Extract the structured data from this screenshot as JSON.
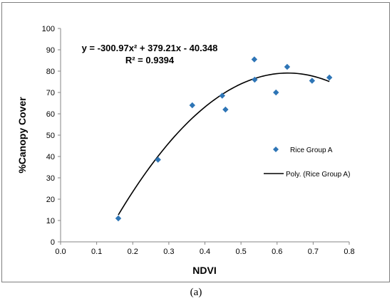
{
  "chart_data": {
    "type": "scatter",
    "title": "",
    "xlabel": "NDVI",
    "ylabel": "%Canopy Cover",
    "xlim": [
      0.0,
      0.8
    ],
    "ylim": [
      0,
      100
    ],
    "xticks": [
      "0.0",
      "0.1",
      "0.2",
      "0.3",
      "0.4",
      "0.5",
      "0.6",
      "0.7",
      "0.8"
    ],
    "yticks": [
      "0",
      "10",
      "20",
      "30",
      "40",
      "50",
      "60",
      "70",
      "80",
      "90",
      "100"
    ],
    "grid": false,
    "legend_position": "right",
    "series": [
      {
        "name": "Rice Group A",
        "marker": "diamond",
        "color": "#2e75b6",
        "points": [
          {
            "x": 0.16,
            "y": 11
          },
          {
            "x": 0.27,
            "y": 38.5
          },
          {
            "x": 0.365,
            "y": 64
          },
          {
            "x": 0.448,
            "y": 68.5
          },
          {
            "x": 0.457,
            "y": 62
          },
          {
            "x": 0.537,
            "y": 85.5
          },
          {
            "x": 0.538,
            "y": 76
          },
          {
            "x": 0.597,
            "y": 70
          },
          {
            "x": 0.628,
            "y": 82
          },
          {
            "x": 0.697,
            "y": 75.5
          },
          {
            "x": 0.745,
            "y": 77
          }
        ]
      }
    ],
    "trendline": {
      "name": "Poly. (Rice Group A)",
      "type": "polynomial",
      "color": "#000000",
      "coefficients": {
        "a": -300.97,
        "b": 379.21,
        "c": -40.348
      },
      "x_range": [
        0.16,
        0.745
      ]
    },
    "annotations": {
      "equation": "y = -300.97x² + 379.21x - 40.348",
      "r_squared": "R² = 0.9394"
    }
  },
  "caption": "(a)"
}
